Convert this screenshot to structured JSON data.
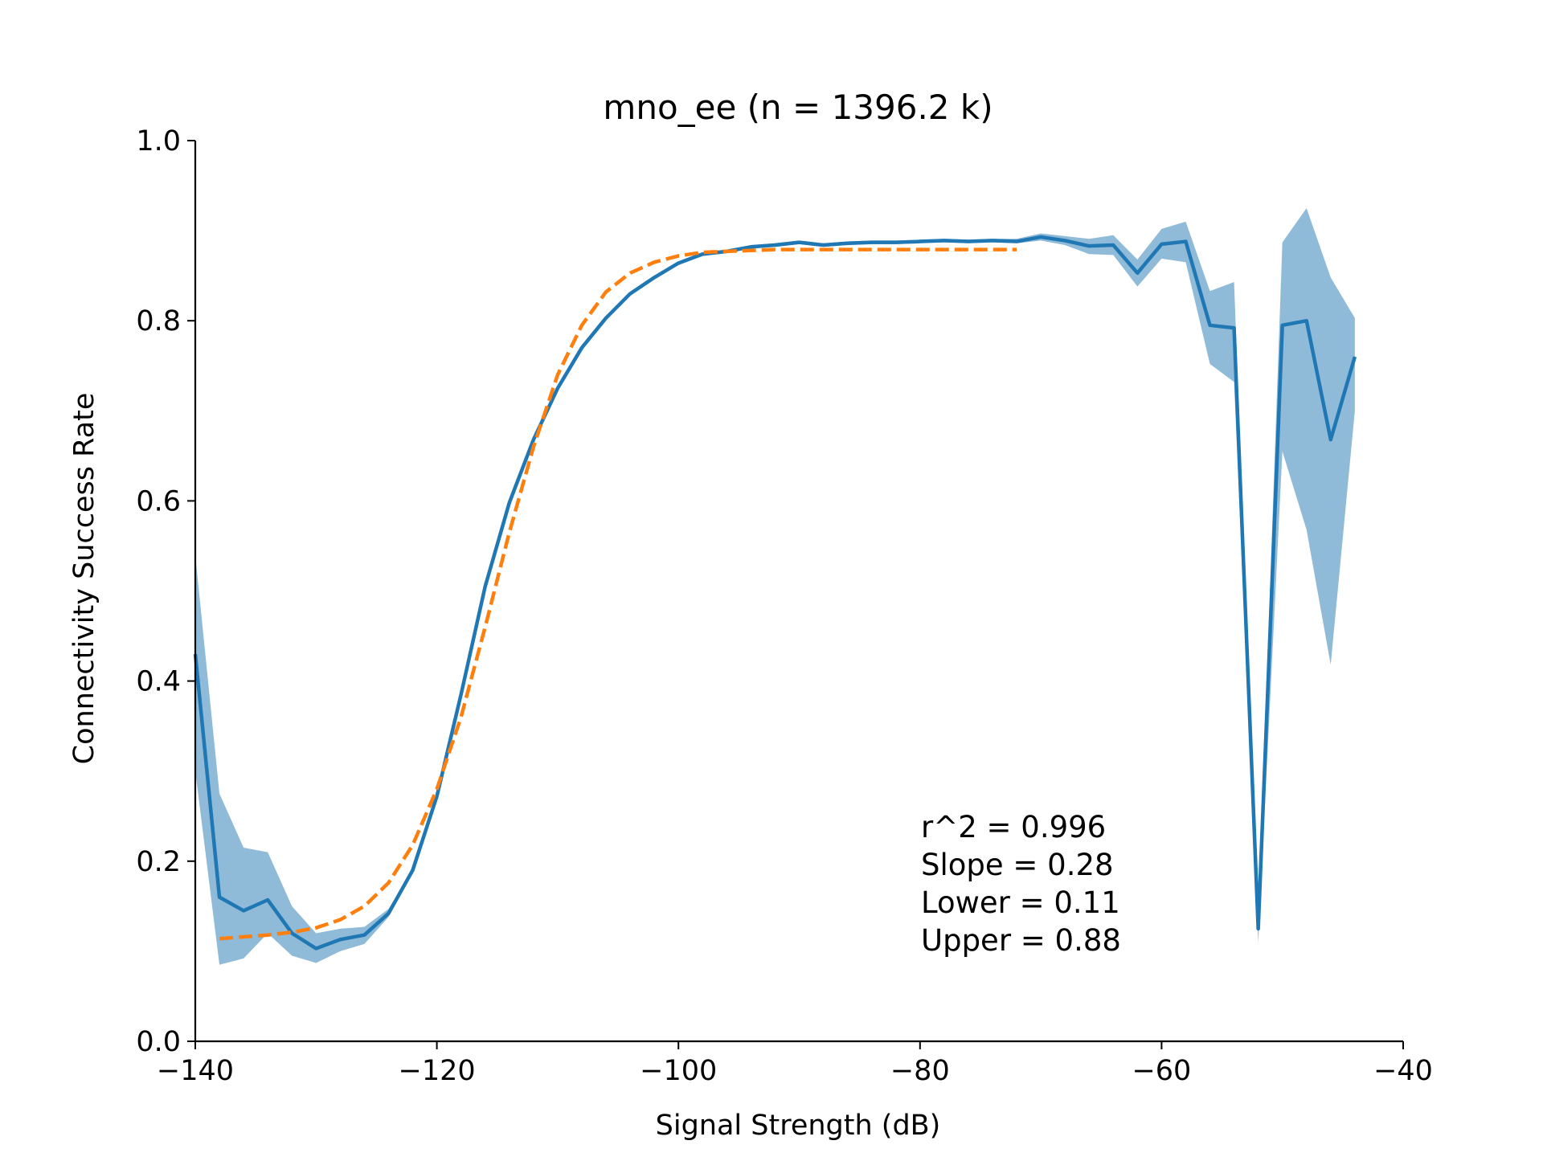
{
  "chart_data": {
    "type": "line",
    "title": "mno_ee (n = 1396.2 k)",
    "xlabel": "Signal Strength (dB)",
    "ylabel": "Connectivity Success Rate",
    "xlim": [
      -140,
      -40
    ],
    "ylim": [
      0.0,
      1.0
    ],
    "xticks": [
      -140,
      -120,
      -100,
      -80,
      -60,
      -40
    ],
    "xtick_labels": [
      "−140",
      "−120",
      "−100",
      "−80",
      "−60",
      "−40"
    ],
    "yticks": [
      0.0,
      0.2,
      0.4,
      0.6,
      0.8,
      1.0
    ],
    "ytick_labels": [
      "0.0",
      "0.2",
      "0.4",
      "0.6",
      "0.8",
      "1.0"
    ],
    "grid": false,
    "colors": {
      "observed": "#1f77b4",
      "band": "#1f77b4",
      "fit": "#ff7f0e"
    },
    "series": [
      {
        "kind": "observed",
        "x": [
          -140,
          -138,
          -136,
          -134,
          -132,
          -130,
          -128,
          -126,
          -124,
          -122,
          -120,
          -118,
          -116,
          -114,
          -112,
          -110,
          -108,
          -106,
          -104,
          -102,
          -100,
          -98,
          -96,
          -94,
          -92,
          -90,
          -88,
          -86,
          -84,
          -82,
          -80,
          -78,
          -76,
          -74,
          -72,
          -70,
          -68,
          -66,
          -64,
          -62,
          -60,
          -58,
          -56,
          -54,
          -52,
          -50,
          -48,
          -46,
          -44
        ],
        "y": [
          0.43,
          0.16,
          0.145,
          0.157,
          0.12,
          0.103,
          0.113,
          0.118,
          0.142,
          0.19,
          0.272,
          0.385,
          0.505,
          0.598,
          0.668,
          0.725,
          0.77,
          0.803,
          0.83,
          0.848,
          0.864,
          0.874,
          0.877,
          0.882,
          0.884,
          0.887,
          0.884,
          0.886,
          0.887,
          0.887,
          0.888,
          0.889,
          0.888,
          0.889,
          0.888,
          0.893,
          0.889,
          0.883,
          0.884,
          0.853,
          0.885,
          0.888,
          0.795,
          0.792,
          0.125,
          0.795,
          0.8,
          0.668,
          0.76
        ],
        "lower": [
          0.3,
          0.085,
          0.092,
          0.12,
          0.095,
          0.087,
          0.1,
          0.108,
          0.138,
          0.188,
          0.27,
          0.383,
          0.503,
          0.596,
          0.666,
          0.723,
          0.768,
          0.801,
          0.828,
          0.846,
          0.862,
          0.872,
          0.875,
          0.88,
          0.882,
          0.885,
          0.882,
          0.884,
          0.885,
          0.885,
          0.886,
          0.887,
          0.886,
          0.887,
          0.886,
          0.889,
          0.884,
          0.874,
          0.873,
          0.838,
          0.869,
          0.865,
          0.752,
          0.732,
          0.11,
          0.655,
          0.568,
          0.418,
          0.7
        ],
        "upper": [
          0.54,
          0.275,
          0.215,
          0.21,
          0.15,
          0.12,
          0.125,
          0.127,
          0.147,
          0.192,
          0.274,
          0.387,
          0.507,
          0.6,
          0.67,
          0.727,
          0.772,
          0.805,
          0.832,
          0.85,
          0.866,
          0.876,
          0.879,
          0.884,
          0.886,
          0.889,
          0.886,
          0.888,
          0.889,
          0.889,
          0.89,
          0.891,
          0.89,
          0.891,
          0.891,
          0.897,
          0.894,
          0.891,
          0.895,
          0.868,
          0.902,
          0.91,
          0.833,
          0.843,
          0.14,
          0.887,
          0.925,
          0.848,
          0.803
        ]
      },
      {
        "kind": "fit",
        "x": [
          -138,
          -136,
          -134,
          -132,
          -130,
          -128,
          -126,
          -124,
          -122,
          -120,
          -118,
          -116,
          -114,
          -112,
          -110,
          -108,
          -106,
          -104,
          -102,
          -100,
          -98,
          -96,
          -94,
          -92,
          -90,
          -88,
          -86,
          -84,
          -82,
          -80,
          -78,
          -76,
          -74,
          -72
        ],
        "y": [
          0.114,
          0.116,
          0.118,
          0.121,
          0.126,
          0.135,
          0.15,
          0.176,
          0.218,
          0.28,
          0.36,
          0.46,
          0.565,
          0.66,
          0.74,
          0.795,
          0.832,
          0.853,
          0.865,
          0.872,
          0.876,
          0.877,
          0.878,
          0.879,
          0.879,
          0.879,
          0.879,
          0.879,
          0.879,
          0.879,
          0.879,
          0.879,
          0.879,
          0.879
        ]
      }
    ],
    "annotations": [
      "r^2 = 0.996",
      "Slope = 0.28",
      "Lower = 0.11",
      "Upper = 0.88"
    ]
  }
}
